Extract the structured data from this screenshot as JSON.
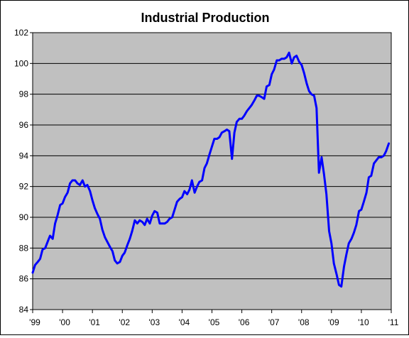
{
  "chart_data": {
    "type": "line",
    "title": "Industrial Production",
    "xlabel": "",
    "ylabel": "",
    "ylim": [
      84,
      102
    ],
    "xlim": [
      1999.0,
      2011.0
    ],
    "y_ticks": [
      84,
      86,
      88,
      90,
      92,
      94,
      96,
      98,
      100,
      102
    ],
    "x_ticks": [
      {
        "value": 1999,
        "label": "'99"
      },
      {
        "value": 2000,
        "label": "'00"
      },
      {
        "value": 2001,
        "label": "'01"
      },
      {
        "value": 2002,
        "label": "'02"
      },
      {
        "value": 2003,
        "label": "'03"
      },
      {
        "value": 2004,
        "label": "'04"
      },
      {
        "value": 2005,
        "label": "'05"
      },
      {
        "value": 2006,
        "label": "'06"
      },
      {
        "value": 2007,
        "label": "'07"
      },
      {
        "value": 2008,
        "label": "'08"
      },
      {
        "value": 2009,
        "label": "'09"
      },
      {
        "value": 2010,
        "label": "'10"
      },
      {
        "value": 2011,
        "label": "'11"
      }
    ],
    "grid": "horizontal",
    "legend": "none",
    "colors": {
      "line": "#0000ff",
      "plot_background": "#c0c0c0",
      "grid": "#000000"
    },
    "series": [
      {
        "x": [
          1999.0,
          1999.08,
          1999.17,
          1999.25,
          1999.33,
          1999.42,
          1999.5,
          1999.58,
          1999.67,
          1999.75,
          1999.83,
          1999.92,
          2000.0,
          2000.08,
          2000.17,
          2000.25,
          2000.33,
          2000.42,
          2000.5,
          2000.58,
          2000.67,
          2000.75,
          2000.83,
          2000.92,
          2001.0,
          2001.08,
          2001.17,
          2001.25,
          2001.33,
          2001.42,
          2001.5,
          2001.58,
          2001.67,
          2001.75,
          2001.83,
          2001.92,
          2002.0,
          2002.08,
          2002.17,
          2002.25,
          2002.33,
          2002.42,
          2002.5,
          2002.58,
          2002.67,
          2002.75,
          2002.83,
          2002.92,
          2003.0,
          2003.08,
          2003.17,
          2003.25,
          2003.33,
          2003.42,
          2003.5,
          2003.58,
          2003.67,
          2003.75,
          2003.83,
          2003.92,
          2004.0,
          2004.08,
          2004.17,
          2004.25,
          2004.33,
          2004.42,
          2004.5,
          2004.58,
          2004.67,
          2004.75,
          2004.83,
          2004.92,
          2005.0,
          2005.08,
          2005.17,
          2005.25,
          2005.33,
          2005.42,
          2005.5,
          2005.58,
          2005.67,
          2005.75,
          2005.83,
          2005.92,
          2006.0,
          2006.08,
          2006.17,
          2006.25,
          2006.33,
          2006.42,
          2006.5,
          2006.58,
          2006.67,
          2006.75,
          2006.83,
          2006.92,
          2007.0,
          2007.08,
          2007.17,
          2007.25,
          2007.33,
          2007.42,
          2007.5,
          2007.58,
          2007.67,
          2007.75,
          2007.83,
          2007.92,
          2008.0,
          2008.08,
          2008.17,
          2008.25,
          2008.33,
          2008.42,
          2008.5,
          2008.58,
          2008.67,
          2008.75,
          2008.83,
          2008.92,
          2009.0,
          2009.08,
          2009.17,
          2009.25,
          2009.33,
          2009.42,
          2009.5,
          2009.58,
          2009.67,
          2009.75,
          2009.83,
          2009.92,
          2010.0,
          2010.08,
          2010.17,
          2010.25,
          2010.33,
          2010.42,
          2010.5,
          2010.58,
          2010.67,
          2010.75,
          2010.83,
          2010.92
        ],
        "values": [
          86.4,
          86.9,
          87.1,
          87.3,
          87.9,
          88.0,
          88.4,
          88.8,
          88.6,
          89.6,
          90.1,
          90.8,
          90.9,
          91.3,
          91.6,
          92.2,
          92.4,
          92.4,
          92.2,
          92.1,
          92.4,
          92.0,
          92.1,
          91.7,
          91.1,
          90.6,
          90.2,
          89.9,
          89.2,
          88.7,
          88.4,
          88.1,
          87.8,
          87.2,
          87.0,
          87.1,
          87.5,
          87.7,
          88.2,
          88.6,
          89.1,
          89.8,
          89.6,
          89.8,
          89.7,
          89.5,
          89.9,
          89.6,
          90.1,
          90.4,
          90.3,
          89.6,
          89.6,
          89.6,
          89.7,
          89.9,
          90.0,
          90.5,
          91.0,
          91.2,
          91.3,
          91.7,
          91.5,
          91.8,
          92.4,
          91.6,
          92.0,
          92.3,
          92.4,
          93.2,
          93.5,
          94.1,
          94.6,
          95.1,
          95.1,
          95.2,
          95.5,
          95.6,
          95.7,
          95.6,
          93.8,
          95.5,
          96.2,
          96.4,
          96.4,
          96.6,
          96.9,
          97.1,
          97.3,
          97.6,
          97.9,
          97.9,
          97.8,
          97.7,
          98.5,
          98.6,
          99.3,
          99.6,
          100.2,
          100.2,
          100.3,
          100.3,
          100.4,
          100.7,
          100.0,
          100.4,
          100.5,
          100.1,
          99.9,
          99.4,
          98.7,
          98.2,
          98.0,
          97.9,
          97.1,
          92.9,
          93.9,
          92.8,
          91.5,
          89.1,
          88.3,
          87.0,
          86.3,
          85.6,
          85.5,
          86.8,
          87.6,
          88.3,
          88.6,
          89.0,
          89.5,
          90.4,
          90.5,
          91.0,
          91.6,
          92.6,
          92.7,
          93.5,
          93.7,
          93.9,
          93.9,
          94.0,
          94.3,
          94.8
        ]
      }
    ]
  }
}
